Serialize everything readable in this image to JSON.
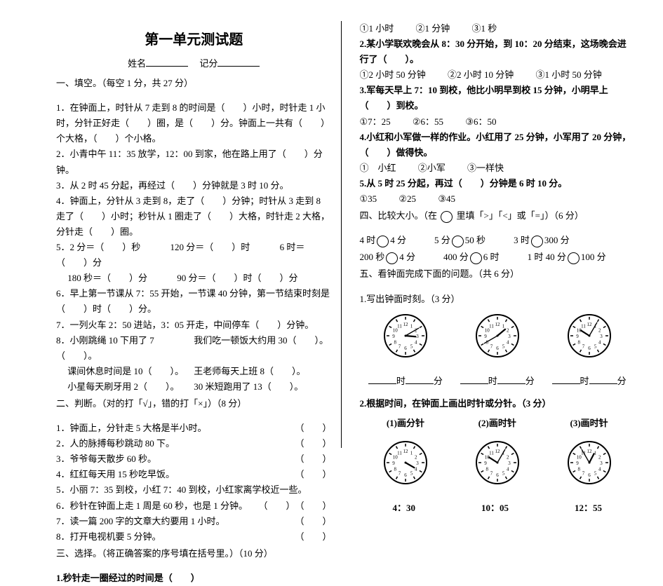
{
  "title": "第一单元测试题",
  "name_label": "姓名",
  "score_label": "记分",
  "s1": {
    "head": "一、填空。（每空 1 分，共 27 分）",
    "q1": "1．在钟面上，时针从 7 走到 8 的时间是（　　）小时，时针走 1 小时，分针正好走（　　）圈，是（　　）分。钟面上一共有（　　）个大格，（　　）个小格。",
    "q2": "2．小青中午 11：35 放学，12：00 到家，他在路上用了（　　）分钟。",
    "q3": "3．从 2 时 45 分起，再经过（　　）分钟就是 3 时 10 分。",
    "q4": "4．钟面上，分针从 3 走到 8，走了（　　）分钟；时针从 3 走到 8 走了（　　）小时；秒针从 1 圈走了（　　）大格，时针走 2 大格，分针走（　　）圈。",
    "q5a": "5．2 分＝（　　）秒",
    "q5b": "120 分＝（　　）时",
    "q5c": "6 时＝（　　）分",
    "q5d": "　 180 秒＝（　　）分",
    "q5e": "90 分＝（　　）时（　　）分",
    "q6": "6．早上第一节课从 7：55 开始，一节课 40 分钟，第一节结束时刻是（　　）时（　　）分。",
    "q7": "7．一列火车 2：50 进站，3：05 开走，中间停车（　　）分钟。",
    "q8a": "8．小刚跳绳 10 下用了 7（　　）。",
    "q8b": "我们吃一顿饭大约用 30（　　）。",
    "q8c": "　 课间休息时间是 10（　　）。",
    "q8d": "王老师每天上班 8（　　）。",
    "q8e": "　 小星每天刷牙用 2（　　）。",
    "q8f": "30 米短跑用了 13（　　）。"
  },
  "s2": {
    "head": "二、判断。（对的打「√」，错的打「×」）（8 分）",
    "q1": "1．钟面上，分针走 5 大格是半小时。",
    "q2": "2．人的脉搏每秒跳动 80 下。",
    "q3": "3．爷爷每天散步 60 秒。",
    "q4": "4．红红每天用 15 秒吃早饭。",
    "q5": "5．小丽 7：35 到校，小红 7：40 到校，小红家离学校近一些。",
    "q6": "6．秒针在钟面上走 1 周是 60 秒，也是 1 分钟。",
    "q7": "7．读一篇 200 字的文章大约要用 1 小时。",
    "q8": "8．打开电视机要 5 分钟。"
  },
  "s3": {
    "head": "三、选择。（将正确答案的序号填在括号里。）（10 分）",
    "q1": "1.秒针走一圈经过的时间是（　　）",
    "q1o1": "①1 小时",
    "q1o2": "②1 分钟",
    "q1o3": "③1 秒",
    "q2": "2.某小学联欢晚会从 8：30 分开始，到 10：20 分结束，这场晚会进行了（　　）。",
    "q2o1": "①2 小时 50 分钟",
    "q2o2": "②2 小时 10 分钟",
    "q2o3": "③1 小时 50 分钟",
    "q3": "3.军每天早上 7：10 到校，他比小明早到校 15 分钟，小明早上（　　）到校。",
    "q3o1": "①7：25",
    "q3o2": "②6：55",
    "q3o3": "③6：50",
    "q4": "4.小红和小军做一样的作业。小红用了 25 分钟，小军用了 20 分钟，（　　）做得快。",
    "q4o1": "①　小红",
    "q4o2": "②小军",
    "q4o3": "③一样快",
    "q5": "5.从 5 时 25 分起，再过（　　）分钟是 6 时 10 分。",
    "q5o1": "①35",
    "q5o2": "②25",
    "q5o3": "③45"
  },
  "s4": {
    "head": "四、比较大小。（在 　 里填「>」「<」或「=」）（6 分）",
    "r1a": "4 时",
    "r1b": "4 分",
    "r1c": "5 分",
    "r1d": "50 秒",
    "r1e": "3 时",
    "r1f": "300 分",
    "r2a": "200 秒",
    "r2b": "4 分",
    "r2c": "400 分",
    "r2d": "6 时",
    "r2e": "1 时 40 分",
    "r2f": "100 分"
  },
  "s5": {
    "head": "五、看钟面完成下面的问题。（共 6 分）",
    "p1": "1.写出钟面时刻。（3 分）",
    "p2": "2.根据时间，在钟面上画出时针或分针。（3 分）",
    "c1": "(1)画分针",
    "c2": "(2)画时针",
    "c3": "(3)画时针",
    "t1": "4：30",
    "t2": "10：05",
    "t3": "12：55",
    "lbl_h": "时",
    "lbl_m": "分"
  },
  "clocks": {
    "row1": [
      {
        "hour": 3,
        "min": 10,
        "r": 30
      },
      {
        "hour": 1,
        "min": 40,
        "r": 30
      },
      {
        "hour": 10,
        "min": 5,
        "r": 30
      }
    ],
    "row2": [
      {
        "hour": 4,
        "min": null,
        "r": 30
      },
      {
        "hour": null,
        "min": 5,
        "fixed_hour": 10,
        "r": 30
      },
      {
        "hour": null,
        "min": 55,
        "fixed_hour": 12,
        "r": 30
      }
    ],
    "face": {
      "stroke": "#000",
      "fill": "#fff",
      "tick": "#000"
    }
  }
}
